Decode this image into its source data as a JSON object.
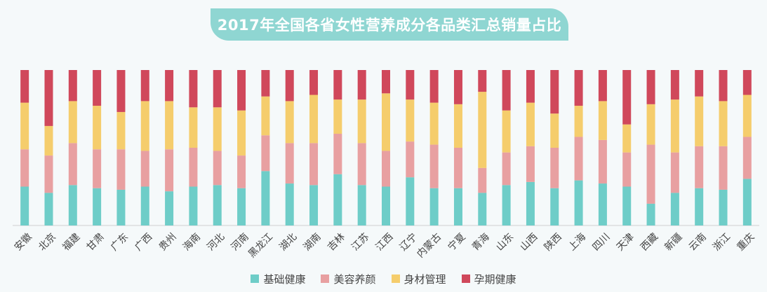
{
  "chart_data": {
    "type": "bar",
    "stacked": true,
    "normalized": true,
    "title": "2017年全国各省女性营养成分各品类汇总销量占比",
    "ylim": [
      0,
      100
    ],
    "legend_position": "bottom",
    "categories": [
      "安徽",
      "北京",
      "福建",
      "甘肃",
      "广东",
      "广西",
      "贵州",
      "海南",
      "河北",
      "河南",
      "黑龙江",
      "湖北",
      "湖南",
      "吉林",
      "江苏",
      "江西",
      "辽宁",
      "内蒙古",
      "宁夏",
      "青海",
      "山东",
      "山西",
      "陕西",
      "上海",
      "四川",
      "天津",
      "西藏",
      "新疆",
      "云南",
      "浙江",
      "重庆"
    ],
    "series": [
      {
        "name": "基础健康",
        "color": "#6ecdc8",
        "values": [
          25,
          21,
          26,
          24,
          23,
          25,
          22,
          25,
          26,
          24,
          35,
          27,
          26,
          33,
          26,
          25,
          31,
          24,
          24,
          21,
          26,
          28,
          24,
          29,
          27,
          25,
          14,
          21,
          24,
          23,
          30
        ]
      },
      {
        "name": "美容养颜",
        "color": "#e8a0a1",
        "values": [
          24,
          24,
          27,
          25,
          26,
          23,
          27,
          25,
          22,
          21,
          23,
          26,
          27,
          26,
          27,
          23,
          23,
          28,
          26,
          16,
          21,
          23,
          26,
          28,
          28,
          22,
          38,
          26,
          27,
          28,
          27
        ]
      },
      {
        "name": "身材管理",
        "color": "#f5cd6c",
        "values": [
          30,
          19,
          27,
          28,
          24,
          32,
          31,
          26,
          28,
          29,
          25,
          27,
          31,
          22,
          28,
          37,
          27,
          27,
          28,
          49,
          27,
          28,
          22,
          20,
          25,
          18,
          26,
          34,
          32,
          29,
          27
        ]
      },
      {
        "name": "孕期健康",
        "color": "#d0485b",
        "values": [
          21,
          36,
          20,
          23,
          27,
          20,
          20,
          24,
          24,
          26,
          17,
          20,
          16,
          19,
          19,
          15,
          19,
          21,
          22,
          14,
          26,
          21,
          28,
          23,
          20,
          35,
          22,
          19,
          17,
          20,
          16
        ]
      }
    ]
  }
}
